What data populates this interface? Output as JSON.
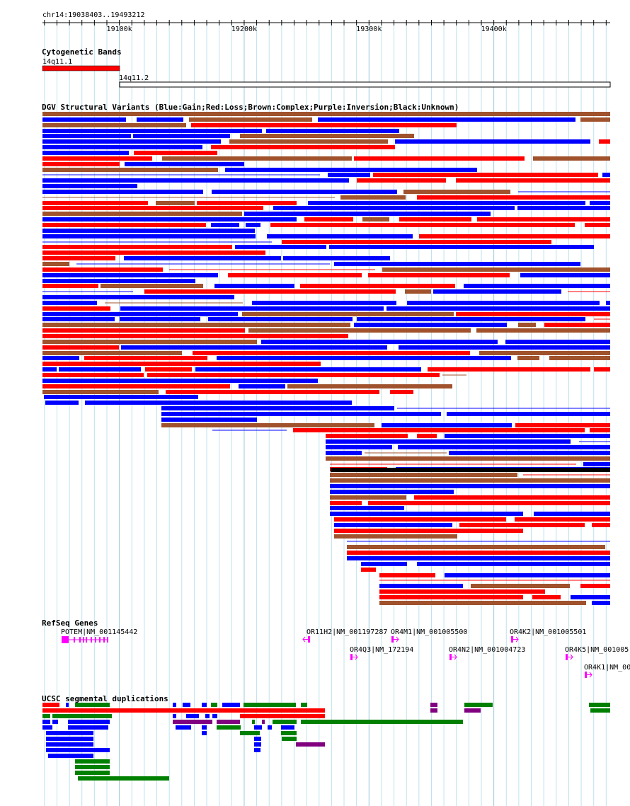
{
  "ruler": {
    "location": "chr14:19038403..19493212",
    "start": 19038403,
    "end": 19493212,
    "ticks": [
      {
        "pos": 19100000,
        "label": "19100k"
      },
      {
        "pos": 19200000,
        "label": "19200k"
      },
      {
        "pos": 19300000,
        "label": "19300k"
      },
      {
        "pos": 19400000,
        "label": "19400k"
      }
    ]
  },
  "tracks": {
    "cytoband": {
      "title": "Cytogenetic Bands",
      "bands": [
        {
          "name": "14q11.1",
          "start": 19038403,
          "end": 19100000,
          "color": "#ff0000"
        },
        {
          "name": "14q11.2",
          "start": 19100000,
          "end": 19493212,
          "color": "#ffffff"
        }
      ]
    },
    "dgv": {
      "title": "DGV Structural Variants (Blue:Gain;Red:Loss;Brown:Complex;Purple:Inversion;Black:Unknown)",
      "colors": {
        "gain": "#0000ff",
        "loss": "#ff0000",
        "complex": "#a0522d",
        "inversion": "#800080",
        "unknown": "#000000"
      }
    },
    "refseq": {
      "title": "RefSeq Genes",
      "color": "#ff00ff",
      "genes": [
        {
          "label": "POTEM|NM_001145442",
          "strand": "-"
        },
        {
          "label": "OR11H2|NM_001197287",
          "strand": "-"
        },
        {
          "label": "OR4M1|NM_001005500",
          "strand": "+"
        },
        {
          "label": "OR4K2|NM_001005501",
          "strand": "+"
        },
        {
          "label": "OR4Q3|NM_172194",
          "strand": "+"
        },
        {
          "label": "OR4N2|NM_001004723",
          "strand": "+"
        },
        {
          "label": "OR4K5|NM_001005",
          "strand": "+"
        },
        {
          "label": "OR4K1|NM_00",
          "strand": "+"
        }
      ]
    },
    "segdups": {
      "title": "UCSC segmental duplications",
      "colors": {
        "red": "#ff0000",
        "green": "#008000",
        "blue": "#0000ff",
        "purple": "#800080"
      }
    }
  }
}
